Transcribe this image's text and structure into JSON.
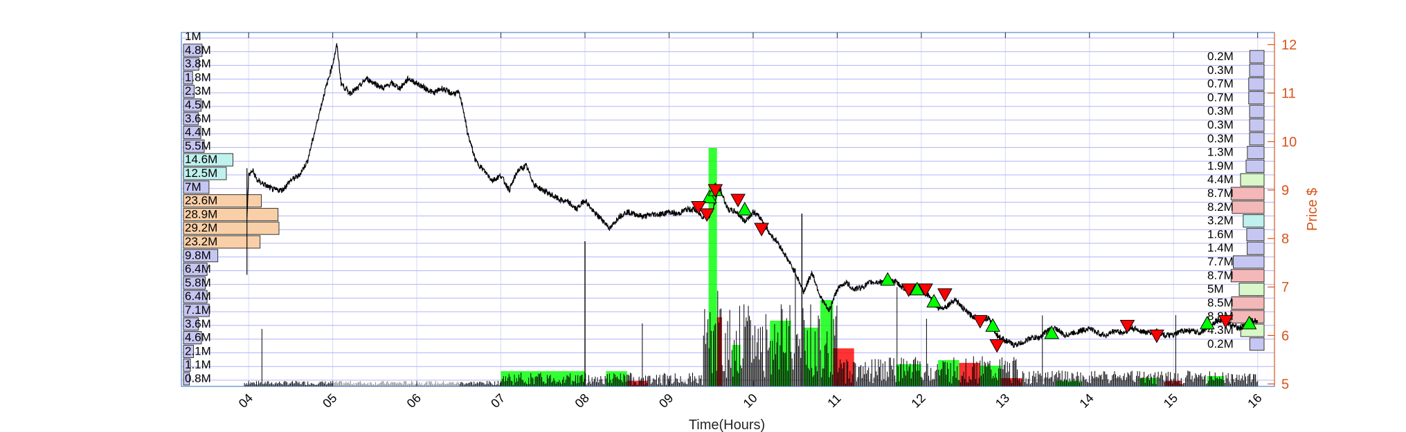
{
  "chart_data": {
    "type": "line",
    "xlabel": "Time(Hours)",
    "ylabel": "Price $",
    "xlim": [
      3.2,
      16.2
    ],
    "ylim": [
      4.95,
      12.25
    ],
    "x_ticks": [
      4,
      5,
      6,
      7,
      8,
      9,
      10,
      11,
      12,
      13,
      14,
      15,
      16
    ],
    "x_tick_labels": [
      "04",
      "05",
      "06",
      "07",
      "08",
      "09",
      "10",
      "11",
      "12",
      "13",
      "14",
      "15",
      "16"
    ],
    "y_ticks": [
      5,
      6,
      7,
      8,
      9,
      10,
      11,
      12
    ],
    "y_tick_labels": [
      "5",
      "6",
      "7",
      "8",
      "9",
      "10",
      "11",
      "12"
    ],
    "grid": true,
    "colors": {
      "price_axis": "#d95319",
      "price_line": "#000000",
      "buy_marker": "#00ff00",
      "sell_marker": "#ff0000",
      "grid": "#b0b0ff",
      "volume_up": "#00ff00",
      "volume_down": "#ff0000",
      "volume_neutral": "#000000"
    },
    "price_series": {
      "name": "Price",
      "x": [
        3.98,
        4.0,
        4.05,
        4.1,
        4.2,
        4.3,
        4.4,
        4.5,
        4.6,
        4.7,
        4.8,
        4.9,
        5.0,
        5.05,
        5.1,
        5.2,
        5.3,
        5.4,
        5.5,
        5.6,
        5.7,
        5.8,
        5.9,
        6.0,
        6.1,
        6.2,
        6.3,
        6.4,
        6.5,
        6.55,
        6.6,
        6.7,
        6.8,
        6.9,
        7.0,
        7.1,
        7.2,
        7.3,
        7.4,
        7.5,
        7.6,
        7.7,
        7.8,
        7.9,
        8.0,
        8.1,
        8.2,
        8.3,
        8.4,
        8.5,
        8.6,
        8.7,
        8.8,
        8.9,
        9.0,
        9.1,
        9.2,
        9.3,
        9.4,
        9.5,
        9.6,
        9.7,
        9.8,
        9.9,
        10.0,
        10.1,
        10.2,
        10.3,
        10.4,
        10.5,
        10.6,
        10.7,
        10.8,
        10.9,
        11.0,
        11.1,
        11.2,
        11.3,
        11.4,
        11.5,
        11.6,
        11.7,
        11.8,
        11.9,
        12.0,
        12.1,
        12.2,
        12.3,
        12.4,
        12.5,
        12.6,
        12.7,
        12.8,
        12.9,
        13.0,
        13.1,
        13.2,
        13.3,
        13.4,
        13.5,
        13.6,
        13.7,
        13.8,
        13.9,
        14.0,
        14.1,
        14.2,
        14.3,
        14.4,
        14.5,
        14.6,
        14.7,
        14.8,
        14.9,
        15.0,
        15.1,
        15.2,
        15.3,
        15.4,
        15.5,
        15.6,
        15.7,
        15.8,
        15.9,
        16.0
      ],
      "y": [
        8.4,
        9.3,
        9.4,
        9.2,
        9.1,
        9.0,
        9.0,
        9.2,
        9.3,
        9.6,
        10.3,
        11.0,
        11.6,
        12.0,
        11.2,
        11.0,
        11.1,
        11.3,
        11.2,
        11.1,
        11.2,
        11.1,
        11.3,
        11.2,
        11.1,
        11.0,
        11.1,
        11.0,
        11.0,
        10.7,
        10.2,
        9.6,
        9.4,
        9.2,
        9.3,
        9.0,
        9.4,
        9.5,
        9.1,
        9.0,
        8.9,
        8.8,
        8.75,
        8.6,
        8.8,
        8.55,
        8.4,
        8.2,
        8.45,
        8.55,
        8.5,
        8.45,
        8.5,
        8.5,
        8.55,
        8.5,
        8.6,
        8.6,
        8.45,
        8.5,
        9.05,
        8.6,
        8.55,
        8.35,
        8.55,
        8.4,
        8.1,
        7.9,
        7.6,
        7.3,
        6.9,
        7.3,
        6.8,
        6.5,
        6.95,
        7.1,
        6.95,
        7.0,
        7.1,
        7.1,
        7.15,
        7.1,
        6.95,
        7.0,
        6.95,
        6.8,
        6.55,
        6.6,
        6.75,
        6.55,
        6.4,
        6.35,
        6.35,
        6.0,
        5.9,
        5.8,
        5.85,
        5.95,
        5.95,
        6.1,
        6.15,
        6.0,
        6.05,
        6.1,
        6.15,
        6.05,
        6.0,
        6.1,
        6.05,
        6.15,
        6.1,
        6.05,
        6.1,
        6.0,
        6.0,
        6.1,
        6.1,
        6.05,
        6.15,
        6.3,
        6.3,
        6.2,
        6.15,
        6.3,
        6.3
      ]
    },
    "buy_signals": {
      "x": [
        9.48,
        9.55,
        9.9,
        11.6,
        11.95,
        12.15,
        12.85,
        13.55,
        15.4,
        15.9
      ],
      "y": [
        8.85,
        9.0,
        8.6,
        7.15,
        6.95,
        6.7,
        6.2,
        6.05,
        6.25,
        6.25
      ]
    },
    "sell_signals": {
      "x": [
        9.35,
        9.45,
        9.55,
        9.82,
        10.1,
        11.85,
        12.05,
        12.28,
        12.7,
        12.9,
        14.45,
        14.8,
        15.62
      ],
      "y": [
        8.65,
        8.5,
        9.0,
        8.8,
        8.2,
        6.95,
        6.95,
        6.85,
        6.3,
        5.8,
        6.2,
        6.0,
        6.3
      ]
    },
    "volume_profile_left": {
      "labels": [
        "1M",
        "4.8M",
        "3.8M",
        "1.8M",
        "2.3M",
        "4.5M",
        "3.6M",
        "4.4M",
        "5.5M",
        "14.6M",
        "12.5M",
        "7M",
        "23.6M",
        "28.9M",
        "29.2M",
        "23.2M",
        "9.8M",
        "6.4M",
        "5.8M",
        "6.4M",
        "7.1M",
        "3.6M",
        "4.6M",
        "2.1M",
        "1.1M",
        "0.8M"
      ],
      "values": [
        1.0,
        4.8,
        3.8,
        1.8,
        2.3,
        4.5,
        3.6,
        4.4,
        5.5,
        14.6,
        12.5,
        7.0,
        23.6,
        28.9,
        29.2,
        23.2,
        9.8,
        6.4,
        5.8,
        6.4,
        7.1,
        3.6,
        4.6,
        2.1,
        1.1,
        0.8
      ]
    },
    "volume_profile_right": {
      "labels": [
        "0.2M",
        "0.3M",
        "0.7M",
        "0.7M",
        "0.3M",
        "0.3M",
        "0.3M",
        "1.3M",
        "1.9M",
        "4.4M",
        "8.7M",
        "8.2M",
        "3.2M",
        "1.6M",
        "1.4M",
        "7.7M",
        "8.7M",
        "5M",
        "8.5M",
        "8.8M",
        "4.3M",
        "0.2M"
      ],
      "values": [
        0.2,
        0.3,
        0.7,
        0.7,
        0.3,
        0.3,
        0.3,
        1.3,
        1.9,
        4.4,
        8.7,
        8.2,
        3.2,
        1.6,
        1.4,
        7.7,
        8.7,
        5.0,
        8.5,
        8.8,
        4.3,
        0.2
      ]
    }
  }
}
